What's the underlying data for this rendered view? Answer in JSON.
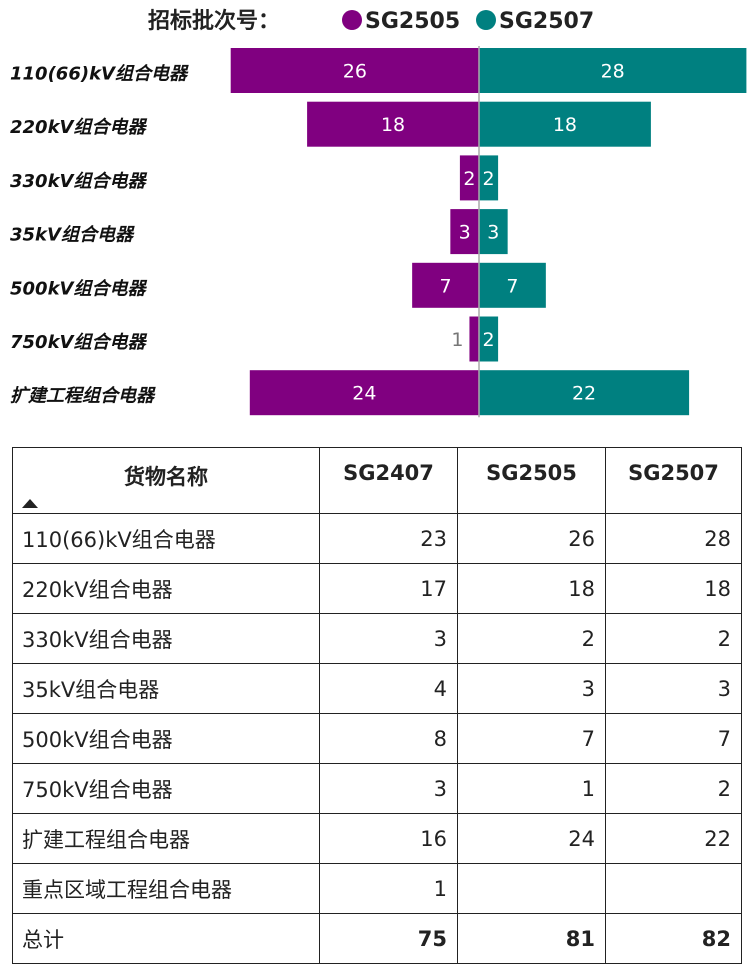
{
  "legend": {
    "title": "招标批次号：",
    "items": [
      {
        "name": "SG2505",
        "color": "#800080"
      },
      {
        "name": "SG2507",
        "color": "#008080"
      }
    ]
  },
  "chart_data": {
    "type": "bar",
    "orientation": "horizontal-butterfly",
    "categories": [
      "110(66)kV组合电器",
      "220kV组合电器",
      "330kV组合电器",
      "35kV组合电器",
      "500kV组合电器",
      "750kV组合电器",
      "扩建工程组合电器"
    ],
    "series": [
      {
        "name": "SG2505",
        "values": [
          26,
          18,
          2,
          3,
          7,
          1,
          24
        ],
        "color": "#800080",
        "side": "left"
      },
      {
        "name": "SG2507",
        "values": [
          28,
          18,
          2,
          3,
          7,
          2,
          22
        ],
        "color": "#008080",
        "side": "right"
      }
    ],
    "xlim": [
      0,
      30
    ],
    "legend_position": "top"
  },
  "table": {
    "headers": [
      "货物名称",
      "SG2407",
      "SG2505",
      "SG2507"
    ],
    "sort_icon": "sort-ascending-icon",
    "rows": [
      [
        "110(66)kV组合电器",
        "23",
        "26",
        "28"
      ],
      [
        "220kV组合电器",
        "17",
        "18",
        "18"
      ],
      [
        "330kV组合电器",
        "3",
        "2",
        "2"
      ],
      [
        "35kV组合电器",
        "4",
        "3",
        "3"
      ],
      [
        "500kV组合电器",
        "8",
        "7",
        "7"
      ],
      [
        "750kV组合电器",
        "3",
        "1",
        "2"
      ],
      [
        "扩建工程组合电器",
        "16",
        "24",
        "22"
      ],
      [
        "重点区域工程组合电器",
        "1",
        "",
        ""
      ]
    ],
    "total": [
      "总计",
      "75",
      "81",
      "82"
    ]
  }
}
